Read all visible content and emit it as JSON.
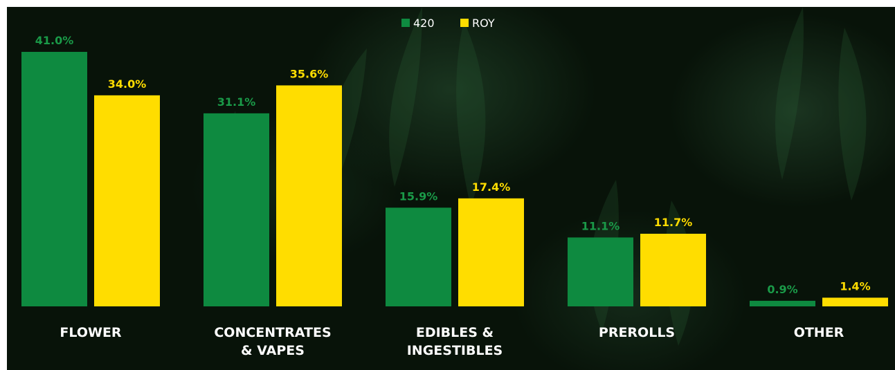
{
  "chart_data": {
    "type": "bar",
    "categories": [
      [
        "FLOWER"
      ],
      [
        "CONCENTRATES",
        "& VAPES"
      ],
      [
        "EDIBLES &",
        "INGESTIBLES"
      ],
      [
        "PREROLLS"
      ],
      [
        "OTHER"
      ]
    ],
    "series": [
      {
        "name": "420",
        "color": "#0e8a40",
        "label_color": "#1a9a48",
        "values": [
          41.0,
          31.1,
          15.9,
          11.1,
          0.9
        ],
        "labels": [
          "41.0%",
          "31.1%",
          "15.9%",
          "11.1%",
          "0.9%"
        ]
      },
      {
        "name": "ROY",
        "color": "#ffdd00",
        "label_color": "#ffdd00",
        "values": [
          34.0,
          35.6,
          17.4,
          11.7,
          1.4
        ],
        "labels": [
          "34.0%",
          "35.6%",
          "17.4%",
          "11.7%",
          "1.4%"
        ]
      }
    ],
    "ylim": [
      0,
      41
    ],
    "grid": false,
    "legend": "top-center",
    "background_color": "#081309"
  }
}
